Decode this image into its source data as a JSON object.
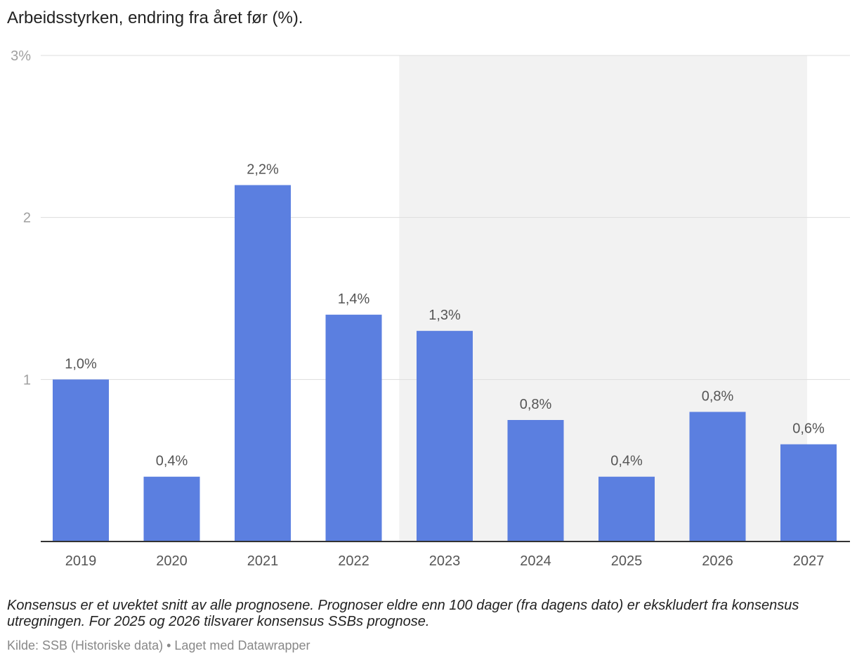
{
  "chart_data": {
    "type": "bar",
    "title": "Arbeidsstyrken, endring fra året før (%).",
    "categories": [
      "2019",
      "2020",
      "2021",
      "2022",
      "2023",
      "2024",
      "2025",
      "2026",
      "2027"
    ],
    "values": [
      1.0,
      0.4,
      2.2,
      1.4,
      1.3,
      0.75,
      0.4,
      0.8,
      0.6
    ],
    "data_labels": [
      "1,0%",
      "0,4%",
      "2,2%",
      "1,4%",
      "1,3%",
      "0,8%",
      "0,4%",
      "0,8%",
      "0,6%"
    ],
    "y_ticks": [
      {
        "value": 1,
        "label": "1"
      },
      {
        "value": 2,
        "label": "2"
      },
      {
        "value": 3,
        "label": "3%"
      }
    ],
    "ylim": [
      0,
      3
    ],
    "grid": true,
    "bar_color": "#5b7fe0",
    "shaded_range": {
      "from": "2023",
      "to": "2027",
      "color": "#f2f2f2"
    }
  },
  "notes": "Konsensus er et uvektet snitt av alle prognosene. Prognoser eldre enn 100 dager (fra dagens dato) er ekskludert fra konsensus utregningen. For 2025 og 2026 tilsvarer konsensus SSBs prognose.",
  "source": "Kilde: SSB (Historiske data) • Laget med Datawrapper"
}
